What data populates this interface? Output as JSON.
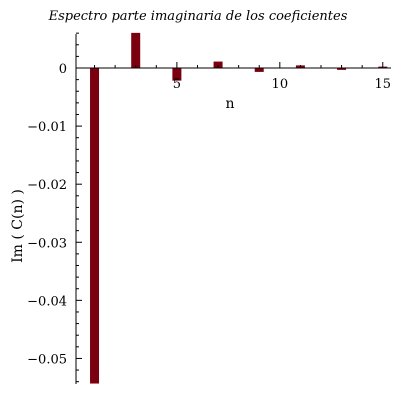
{
  "chart_data": {
    "type": "bar",
    "title": "Espectro parte imaginaria de los coeficientes",
    "xlabel": "n",
    "ylabel": "Im ( C(n) )",
    "x": [
      1,
      2,
      3,
      4,
      5,
      6,
      7,
      8,
      9,
      10,
      11,
      12,
      13,
      14,
      15
    ],
    "values": [
      -0.05432,
      0,
      0.00605,
      0,
      -0.00217,
      0,
      0.00111,
      0,
      -0.00067,
      0,
      0.00045,
      0,
      -0.00032,
      0,
      0.00024
    ],
    "xlim": [
      0.1,
      15.4
    ],
    "ylim": [
      -0.0544,
      0.0062
    ],
    "x_ticks": [
      5,
      10,
      15
    ],
    "x_tick_labels": [
      "5",
      "10",
      "15"
    ],
    "y_ticks": [
      0,
      -0.01,
      -0.02,
      -0.03,
      -0.04,
      -0.05
    ],
    "y_tick_labels": [
      "0",
      "−0.01",
      "−0.02",
      "−0.03",
      "−0.04",
      "−0.05"
    ],
    "bar_color": "#7a0010",
    "grid": false,
    "legend": "none"
  }
}
